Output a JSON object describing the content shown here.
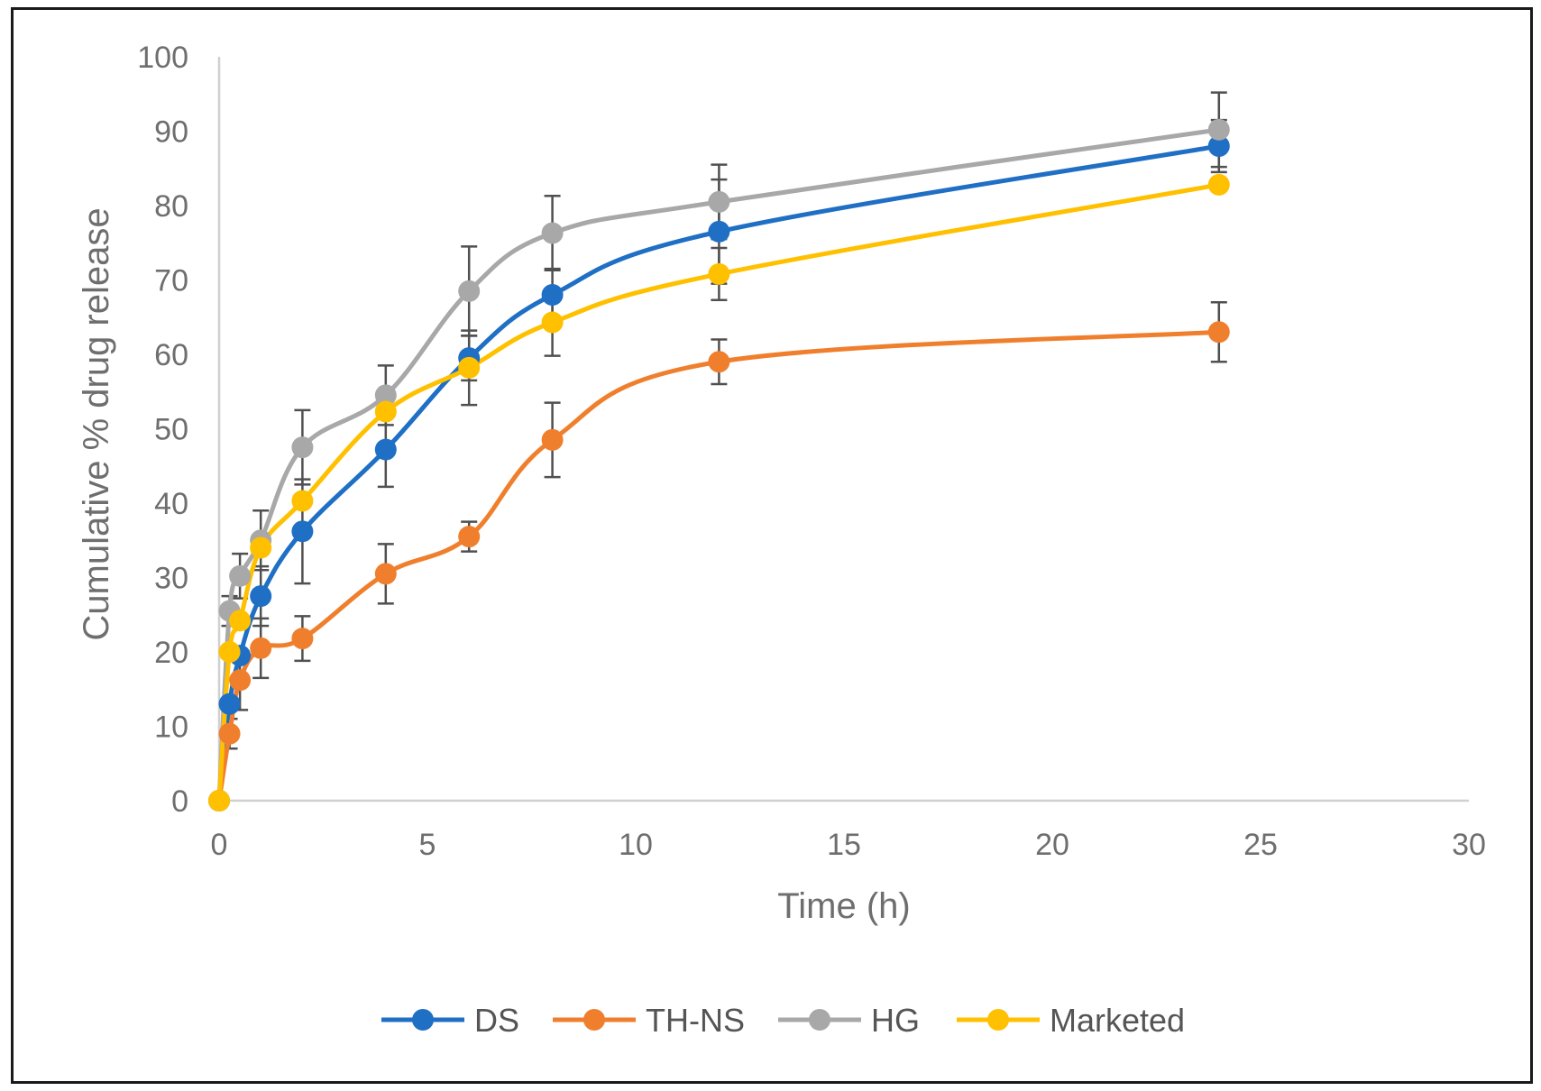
{
  "chart_data": {
    "type": "line",
    "title": "",
    "xlabel": "Time (h)",
    "ylabel": "Cumulative % drug release",
    "xlim": [
      0,
      30
    ],
    "ylim": [
      0,
      100
    ],
    "xticks": [
      0,
      5,
      10,
      15,
      20,
      25,
      30
    ],
    "yticks": [
      0,
      10,
      20,
      30,
      40,
      50,
      60,
      70,
      80,
      90,
      100
    ],
    "grid": false,
    "legend_position": "bottom",
    "x": [
      0,
      0.25,
      0.5,
      1,
      2,
      4,
      6,
      8,
      12,
      24
    ],
    "series": [
      {
        "name": "DS",
        "color": "#1f6fc5",
        "values": [
          0,
          13,
          19.5,
          27.5,
          36.2,
          47.2,
          59.5,
          68,
          76.5,
          88
        ],
        "errors": [
          0,
          0,
          0,
          4,
          7,
          5,
          3,
          3.5,
          7,
          3.5
        ]
      },
      {
        "name": "TH-NS",
        "color": "#f07f2d",
        "values": [
          0,
          9,
          16.2,
          20.5,
          21.8,
          30.5,
          35.5,
          48.5,
          59,
          63
        ],
        "errors": [
          0,
          2,
          4,
          4,
          3,
          4,
          2,
          5,
          3,
          4
        ]
      },
      {
        "name": "HG",
        "color": "#a8a8a8",
        "values": [
          0,
          25.5,
          30.2,
          35,
          47.5,
          54.5,
          68.5,
          76.3,
          80.5,
          90.2
        ],
        "errors": [
          0,
          2,
          3,
          4,
          5,
          4,
          6,
          5,
          5,
          5
        ]
      },
      {
        "name": "Marketed",
        "color": "#ffc000",
        "values": [
          0,
          20,
          24.2,
          34,
          40.3,
          52.3,
          58.2,
          64.3,
          70.8,
          82.8
        ],
        "errors": [
          0,
          0,
          0,
          0,
          0,
          0,
          5,
          4.5,
          3.5,
          0
        ]
      }
    ]
  }
}
